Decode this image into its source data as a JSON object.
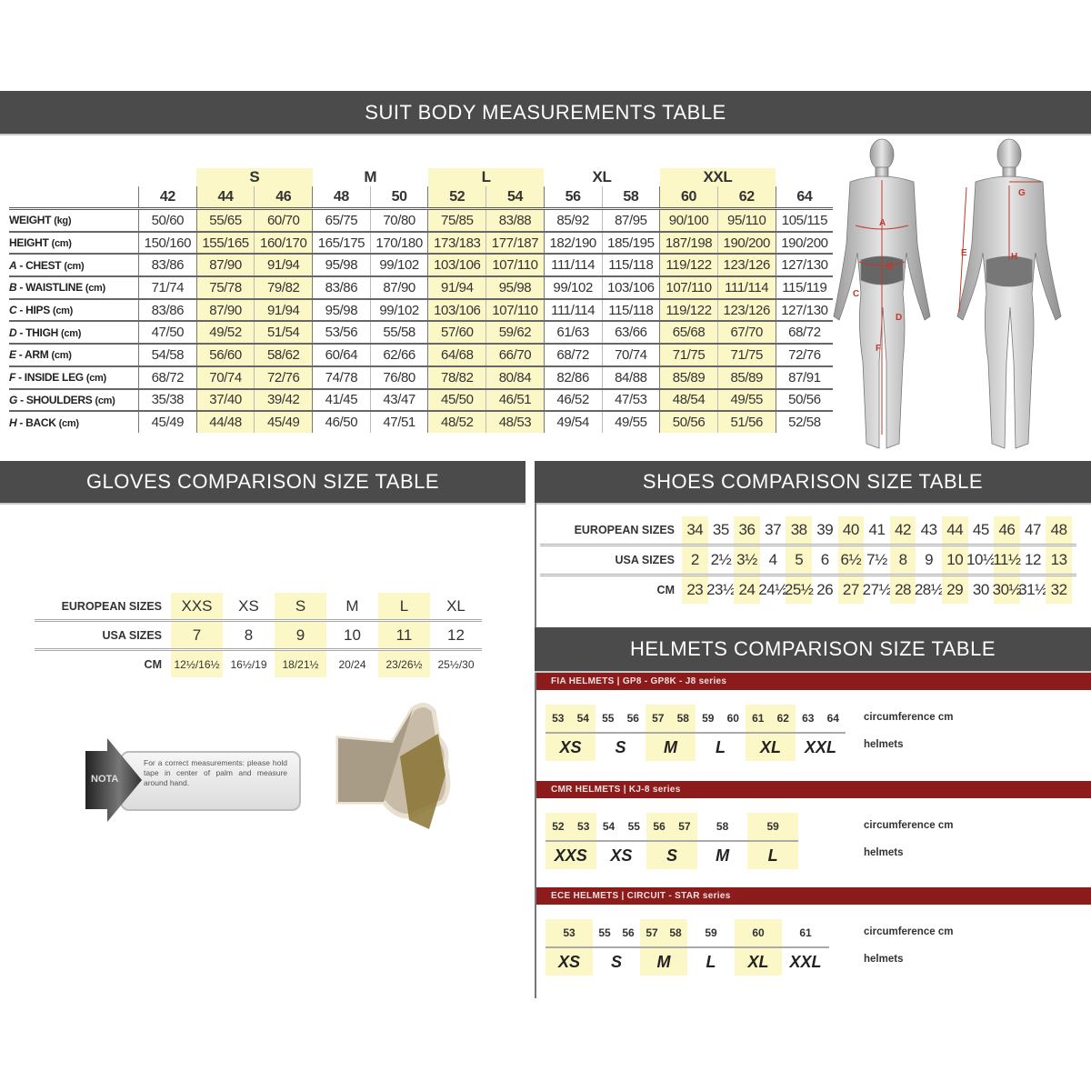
{
  "suit": {
    "title": "SUIT BODY MEASUREMENTS TABLE",
    "groups": [
      {
        "label": "",
        "sizes": [
          "42"
        ],
        "highlight": false
      },
      {
        "label": "S",
        "sizes": [
          "44",
          "46"
        ],
        "highlight": true
      },
      {
        "label": "M",
        "sizes": [
          "48",
          "50"
        ],
        "highlight": false
      },
      {
        "label": "L",
        "sizes": [
          "52",
          "54"
        ],
        "highlight": true
      },
      {
        "label": "XL",
        "sizes": [
          "56",
          "58"
        ],
        "highlight": false
      },
      {
        "label": "XXL",
        "sizes": [
          "60",
          "62"
        ],
        "highlight": true
      },
      {
        "label": "",
        "sizes": [
          "64"
        ],
        "highlight": false
      }
    ],
    "rows": [
      {
        "letter": "",
        "name": "WEIGHT",
        "unit": "(kg)",
        "values": [
          "50/60",
          "55/65",
          "60/70",
          "65/75",
          "70/80",
          "75/85",
          "83/88",
          "85/92",
          "87/95",
          "90/100",
          "95/110",
          "105/115"
        ]
      },
      {
        "letter": "",
        "name": "HEIGHT",
        "unit": "(cm)",
        "values": [
          "150/160",
          "155/165",
          "160/170",
          "165/175",
          "170/180",
          "173/183",
          "177/187",
          "182/190",
          "185/195",
          "187/198",
          "190/200",
          "190/200"
        ]
      },
      {
        "letter": "A",
        "name": "CHEST",
        "unit": "(cm)",
        "values": [
          "83/86",
          "87/90",
          "91/94",
          "95/98",
          "99/102",
          "103/106",
          "107/110",
          "111/114",
          "115/118",
          "119/122",
          "123/126",
          "127/130"
        ]
      },
      {
        "letter": "B",
        "name": "WAISTLINE",
        "unit": "(cm)",
        "values": [
          "71/74",
          "75/78",
          "79/82",
          "83/86",
          "87/90",
          "91/94",
          "95/98",
          "99/102",
          "103/106",
          "107/110",
          "111/114",
          "115/119"
        ]
      },
      {
        "letter": "C",
        "name": "HIPS",
        "unit": "(cm)",
        "values": [
          "83/86",
          "87/90",
          "91/94",
          "95/98",
          "99/102",
          "103/106",
          "107/110",
          "111/114",
          "115/118",
          "119/122",
          "123/126",
          "127/130"
        ]
      },
      {
        "letter": "D",
        "name": "THIGH",
        "unit": "(cm)",
        "values": [
          "47/50",
          "49/52",
          "51/54",
          "53/56",
          "55/58",
          "57/60",
          "59/62",
          "61/63",
          "63/66",
          "65/68",
          "67/70",
          "68/72"
        ]
      },
      {
        "letter": "E",
        "name": "ARM",
        "unit": "(cm)",
        "values": [
          "54/58",
          "56/60",
          "58/62",
          "60/64",
          "62/66",
          "64/68",
          "66/70",
          "68/72",
          "70/74",
          "71/75",
          "71/75",
          "72/76"
        ]
      },
      {
        "letter": "F",
        "name": "INSIDE LEG",
        "unit": "(cm)",
        "values": [
          "68/72",
          "70/74",
          "72/76",
          "74/78",
          "76/80",
          "78/82",
          "80/84",
          "82/86",
          "84/88",
          "85/89",
          "85/89",
          "87/91"
        ]
      },
      {
        "letter": "G",
        "name": "SHOULDERS",
        "unit": "(cm)",
        "values": [
          "35/38",
          "37/40",
          "39/42",
          "41/45",
          "43/47",
          "45/50",
          "46/51",
          "46/52",
          "47/53",
          "48/54",
          "49/55",
          "50/56"
        ]
      },
      {
        "letter": "H",
        "name": "BACK",
        "unit": "(cm)",
        "values": [
          "45/49",
          "44/48",
          "45/49",
          "46/50",
          "47/51",
          "48/52",
          "48/53",
          "49/54",
          "49/55",
          "50/56",
          "51/56",
          "52/58"
        ]
      }
    ],
    "figure_front_labels": [
      "A",
      "B",
      "C",
      "D",
      "F"
    ],
    "figure_back_labels": [
      "G",
      "E",
      "H"
    ]
  },
  "gloves": {
    "title": "GLOVES COMPARISON SIZE TABLE",
    "rows": [
      {
        "label": "EUROPEAN SIZES",
        "values": [
          "XXS",
          "XS",
          "S",
          "M",
          "L",
          "XL"
        ]
      },
      {
        "label": "USA SIZES",
        "values": [
          "7",
          "8",
          "9",
          "10",
          "11",
          "12"
        ]
      },
      {
        "label": "CM",
        "values": [
          "12½/16½",
          "16½/19",
          "18/21½",
          "20/24",
          "23/26½",
          "25½/30"
        ]
      }
    ],
    "highlight_columns": [
      0,
      2,
      4
    ],
    "note_label": "NOTA",
    "note_text": "For a correct measurements: please hold tape in center of palm and measure around hand."
  },
  "shoes": {
    "title": "SHOES COMPARISON SIZE TABLE",
    "rows": [
      {
        "label": "EUROPEAN SIZES",
        "values": [
          "34",
          "35",
          "36",
          "37",
          "38",
          "39",
          "40",
          "41",
          "42",
          "43",
          "44",
          "45",
          "46",
          "47",
          "48"
        ]
      },
      {
        "label": "USA SIZES",
        "values": [
          "2",
          "2½",
          "3½",
          "4",
          "5",
          "6",
          "6½",
          "7½",
          "8",
          "9",
          "10",
          "10½",
          "11½",
          "12",
          "13"
        ]
      },
      {
        "label": "CM",
        "values": [
          "23",
          "23½",
          "24",
          "24½",
          "25½",
          "26",
          "27",
          "27½",
          "28",
          "28½",
          "29",
          "30",
          "30½",
          "31½",
          "32"
        ]
      }
    ],
    "highlight_columns": [
      0,
      2,
      4,
      6,
      8,
      10,
      12,
      14
    ]
  },
  "helmets": {
    "title": "HELMETS COMPARISON SIZE TABLE",
    "circumference_label": "circumference cm",
    "helmets_label": "helmets",
    "tables": [
      {
        "title": "FIA HELMETS | GP8 - GP8K - J8 series",
        "groups": [
          {
            "nums": [
              "53",
              "54"
            ],
            "size": "XS",
            "highlight": true
          },
          {
            "nums": [
              "55",
              "56"
            ],
            "size": "S",
            "highlight": false
          },
          {
            "nums": [
              "57",
              "58"
            ],
            "size": "M",
            "highlight": true
          },
          {
            "nums": [
              "59",
              "60"
            ],
            "size": "L",
            "highlight": false
          },
          {
            "nums": [
              "61",
              "62"
            ],
            "size": "XL",
            "highlight": true
          },
          {
            "nums": [
              "63",
              "64"
            ],
            "size": "XXL",
            "highlight": false
          }
        ]
      },
      {
        "title": "CMR HELMETS | KJ-8 series",
        "groups": [
          {
            "nums": [
              "52",
              "53"
            ],
            "size": "XXS",
            "highlight": true
          },
          {
            "nums": [
              "54",
              "55"
            ],
            "size": "XS",
            "highlight": false
          },
          {
            "nums": [
              "56",
              "57"
            ],
            "size": "S",
            "highlight": true
          },
          {
            "nums": [
              "58"
            ],
            "size": "M",
            "highlight": false
          },
          {
            "nums": [
              "59"
            ],
            "size": "L",
            "highlight": true
          }
        ]
      },
      {
        "title": "ECE HELMETS | CIRCUIT - STAR series",
        "groups": [
          {
            "nums": [
              "53"
            ],
            "size": "XS",
            "highlight": true
          },
          {
            "nums": [
              "55",
              "56"
            ],
            "size": "S",
            "highlight": false
          },
          {
            "nums": [
              "57",
              "58"
            ],
            "size": "M",
            "highlight": true
          },
          {
            "nums": [
              "59"
            ],
            "size": "L",
            "highlight": false
          },
          {
            "nums": [
              "60"
            ],
            "size": "XL",
            "highlight": true
          },
          {
            "nums": [
              "61"
            ],
            "size": "XXL",
            "highlight": false
          }
        ]
      }
    ]
  },
  "colors": {
    "header_bar": "#4b4b4b",
    "highlight": "#fbf7c6",
    "helmet_bar": "#8c1c1c",
    "figure_label": "#c0392b"
  }
}
